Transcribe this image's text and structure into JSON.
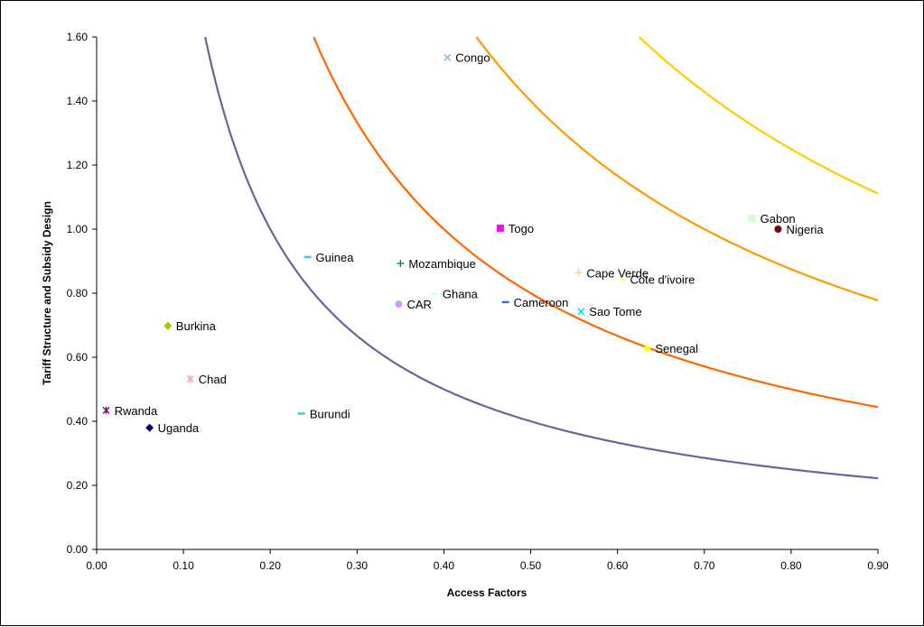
{
  "chart_data": {
    "type": "scatter",
    "title": "",
    "xlabel": "Access Factors",
    "ylabel": "Tariff Structure and Subsidy Design",
    "xlim": [
      0,
      0.9
    ],
    "ylim": [
      0,
      1.6
    ],
    "x_ticks": [
      "0.00",
      "0.10",
      "0.20",
      "0.30",
      "0.40",
      "0.50",
      "0.60",
      "0.70",
      "0.80",
      "0.90"
    ],
    "y_ticks": [
      "0.00",
      "0.20",
      "0.40",
      "0.60",
      "0.80",
      "1.00",
      "1.20",
      "1.40",
      "1.60"
    ],
    "grid": false,
    "legend": "none",
    "points": [
      {
        "label": "Congo",
        "x": 0.404,
        "y": 1.536,
        "marker": "x",
        "color": "#7fb2e6"
      },
      {
        "label": "Togo",
        "x": 0.465,
        "y": 1.003,
        "marker": "square",
        "color": "#ff00ff"
      },
      {
        "label": "Gabon",
        "x": 0.755,
        "y": 1.034,
        "marker": "square",
        "color": "#ccffcc"
      },
      {
        "label": "Nigeria",
        "x": 0.785,
        "y": 1.0,
        "marker": "circle",
        "color": "#800000"
      },
      {
        "label": "Guinea",
        "x": 0.243,
        "y": 0.913,
        "marker": "dash",
        "color": "#33ccff"
      },
      {
        "label": "Mozambique",
        "x": 0.35,
        "y": 0.893,
        "marker": "plus",
        "color": "#008080"
      },
      {
        "label": "Cape Verde",
        "x": 0.555,
        "y": 0.864,
        "marker": "plus",
        "color": "#ffcc99"
      },
      {
        "label": "Cote d'ivoire",
        "x": 0.605,
        "y": 0.843,
        "marker": "dash",
        "color": "#ffff99"
      },
      {
        "label": "Ghana",
        "x": 0.389,
        "y": 0.798,
        "marker": "dash",
        "color": "#ccffff"
      },
      {
        "label": "CAR",
        "x": 0.348,
        "y": 0.766,
        "marker": "circle",
        "color": "#cc99ff"
      },
      {
        "label": "Cameroon",
        "x": 0.471,
        "y": 0.772,
        "marker": "dash",
        "color": "#3366ff"
      },
      {
        "label": "Sao Tome",
        "x": 0.558,
        "y": 0.743,
        "marker": "x",
        "color": "#00ccff"
      },
      {
        "label": "Senegal",
        "x": 0.634,
        "y": 0.628,
        "marker": "diamond",
        "color": "#ffff00"
      },
      {
        "label": "Burkina",
        "x": 0.082,
        "y": 0.698,
        "marker": "diamond",
        "color": "#99cc00"
      },
      {
        "label": "Chad",
        "x": 0.108,
        "y": 0.532,
        "marker": "asterisk",
        "color": "#ff99cc"
      },
      {
        "label": "Rwanda",
        "x": 0.011,
        "y": 0.434,
        "marker": "asterisk",
        "color": "#800080"
      },
      {
        "label": "Uganda",
        "x": 0.061,
        "y": 0.38,
        "marker": "diamond",
        "color": "#000080"
      },
      {
        "label": "Burundi",
        "x": 0.236,
        "y": 0.424,
        "marker": "dash",
        "color": "#33cccc"
      }
    ],
    "curves": [
      {
        "k": 0.2,
        "color": "#666699"
      },
      {
        "k": 0.4,
        "color": "#ff6600"
      },
      {
        "k": 0.7,
        "color": "#ff9900"
      },
      {
        "k": 1.0,
        "color": "#ffcc00"
      }
    ]
  }
}
